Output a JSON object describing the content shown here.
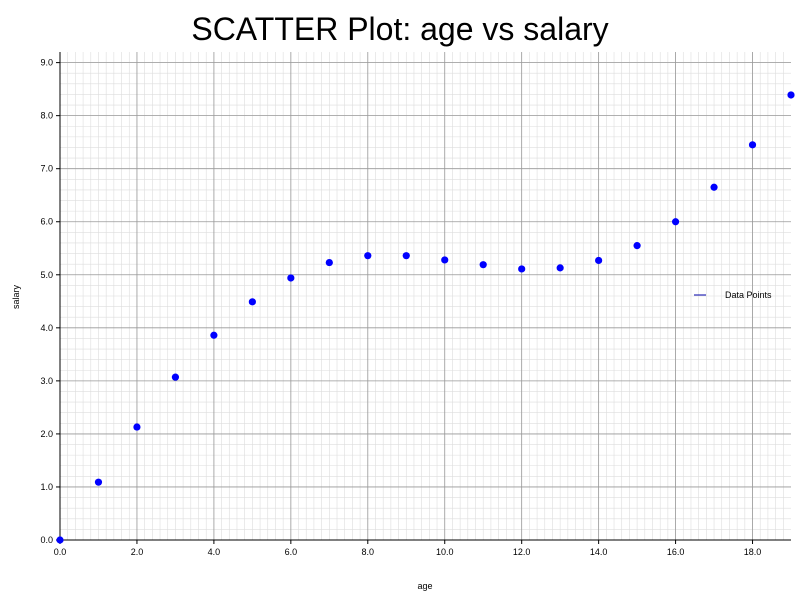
{
  "chart_data": {
    "type": "scatter",
    "title": "SCATTER Plot: age vs salary",
    "xlabel": "age",
    "ylabel": "salary",
    "xlim": [
      0,
      19
    ],
    "ylim": [
      0,
      9.2
    ],
    "x_ticks": [
      0,
      2,
      4,
      6,
      8,
      10,
      12,
      14,
      16,
      18
    ],
    "y_ticks": [
      0,
      1,
      2,
      3,
      4,
      5,
      6,
      7,
      8,
      9
    ],
    "tick_format": "one-decimal",
    "grid": true,
    "legend_position": "right",
    "colors": {
      "points": "#0000ff",
      "legend_line": "#0000aa",
      "grid_major": "#999999",
      "grid_minor": "#dddddd",
      "axis": "#000000"
    },
    "series": [
      {
        "name": "Data Points",
        "x": [
          0,
          1,
          2,
          3,
          4,
          5,
          6,
          7,
          8,
          9,
          10,
          11,
          12,
          13,
          14,
          15,
          16,
          17,
          18,
          19
        ],
        "y": [
          0.0,
          1.09,
          2.13,
          3.07,
          3.86,
          4.49,
          4.94,
          5.23,
          5.36,
          5.36,
          5.28,
          5.19,
          5.11,
          5.13,
          5.27,
          5.55,
          6.0,
          6.65,
          7.45,
          8.39
        ]
      }
    ]
  }
}
